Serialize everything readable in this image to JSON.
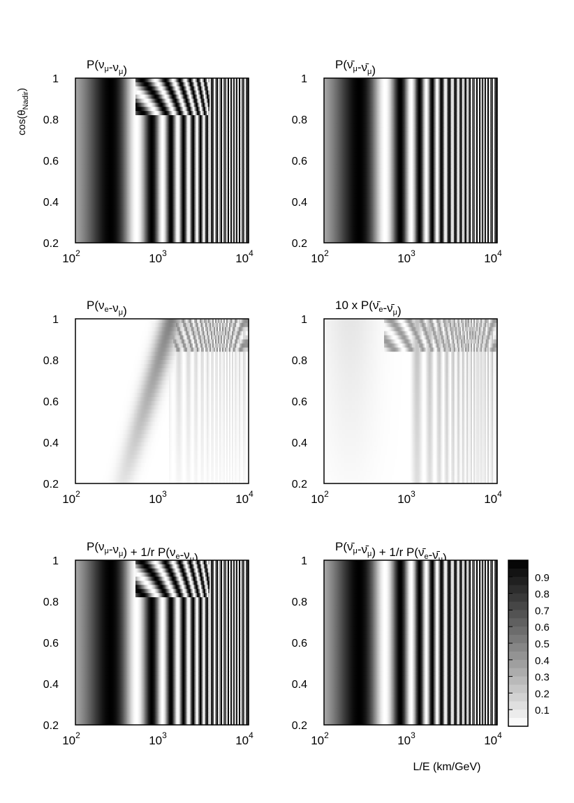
{
  "figure": {
    "ylabel": "cos(θ",
    "ylabel_sub": "Nadir",
    "ylabel_close": ")",
    "xlabel": "L/E (km/GeV)"
  },
  "chart_data": [
    {
      "type": "heatmap",
      "id": "p-numu-numu",
      "title_parts": [
        [
          "P(ν",
          ""
        ],
        [
          "μ",
          "sub"
        ],
        [
          "-ν",
          ""
        ],
        [
          "μ",
          "sub"
        ],
        [
          ")",
          ""
        ]
      ],
      "x_scale": "log",
      "xlim": [
        100,
        10000
      ],
      "ylim": [
        0.2,
        1.0
      ],
      "x_ticks": [
        [
          10,
          2
        ],
        [
          10,
          3
        ],
        [
          10,
          4
        ]
      ],
      "y_ticks": [
        "0.2",
        "0.4",
        "0.6",
        "0.8",
        "1"
      ],
      "value_range": [
        0,
        1
      ],
      "pattern": "survival-nu-matter"
    },
    {
      "type": "heatmap",
      "id": "p-numubar-numubar",
      "title_parts": [
        [
          "P(ν̄",
          ""
        ],
        [
          "μ",
          "sub"
        ],
        [
          "-ν̄",
          ""
        ],
        [
          "μ",
          "sub"
        ],
        [
          ")",
          ""
        ]
      ],
      "x_scale": "log",
      "xlim": [
        100,
        10000
      ],
      "ylim": [
        0.2,
        1.0
      ],
      "x_ticks": [
        [
          10,
          2
        ],
        [
          10,
          3
        ],
        [
          10,
          4
        ]
      ],
      "y_ticks": [
        "0.2",
        "0.4",
        "0.6",
        "0.8",
        "1"
      ],
      "value_range": [
        0,
        1
      ],
      "pattern": "survival-antinu"
    },
    {
      "type": "heatmap",
      "id": "p-nue-numu",
      "title_parts": [
        [
          "P(ν",
          ""
        ],
        [
          "e",
          "sub"
        ],
        [
          "-ν",
          ""
        ],
        [
          "μ",
          "sub"
        ],
        [
          ")",
          ""
        ]
      ],
      "x_scale": "log",
      "xlim": [
        100,
        10000
      ],
      "ylim": [
        0.2,
        1.0
      ],
      "x_ticks": [
        [
          10,
          2
        ],
        [
          10,
          3
        ],
        [
          10,
          4
        ]
      ],
      "y_ticks": [
        "0.2",
        "0.4",
        "0.6",
        "0.8",
        "1"
      ],
      "value_range": [
        0,
        1
      ],
      "pattern": "appearance-nu"
    },
    {
      "type": "heatmap",
      "id": "p-nuebar-numubar-x10",
      "title_parts": [
        [
          "10 x P(ν̄",
          ""
        ],
        [
          "e",
          "sub"
        ],
        [
          "-ν̄",
          ""
        ],
        [
          "μ",
          "sub"
        ],
        [
          ")",
          ""
        ]
      ],
      "x_scale": "log",
      "xlim": [
        100,
        10000
      ],
      "ylim": [
        0.2,
        1.0
      ],
      "x_ticks": [
        [
          10,
          2
        ],
        [
          10,
          3
        ],
        [
          10,
          4
        ]
      ],
      "y_ticks": [
        "0.2",
        "0.4",
        "0.6",
        "0.8",
        "1"
      ],
      "value_range": [
        0,
        1
      ],
      "pattern": "appearance-antinu"
    },
    {
      "type": "heatmap",
      "id": "p-numu-combined",
      "title_parts": [
        [
          "P(ν",
          ""
        ],
        [
          "μ",
          "sub"
        ],
        [
          "-ν",
          ""
        ],
        [
          "μ",
          "sub"
        ],
        [
          ") + 1/r P(ν",
          ""
        ],
        [
          "e",
          "sub"
        ],
        [
          "-ν",
          ""
        ],
        [
          "μ",
          "sub"
        ],
        [
          ")",
          ""
        ]
      ],
      "x_scale": "log",
      "xlim": [
        100,
        10000
      ],
      "ylim": [
        0.2,
        1.0
      ],
      "x_ticks": [
        [
          10,
          2
        ],
        [
          10,
          3
        ],
        [
          10,
          4
        ]
      ],
      "y_ticks": [
        "0.2",
        "0.4",
        "0.6",
        "0.8",
        "1"
      ],
      "value_range": [
        0,
        1
      ],
      "pattern": "survival-nu-matter"
    },
    {
      "type": "heatmap",
      "id": "p-numubar-combined",
      "title_parts": [
        [
          "P(ν̄",
          ""
        ],
        [
          "μ",
          "sub"
        ],
        [
          "-ν̄",
          ""
        ],
        [
          "μ",
          "sub"
        ],
        [
          ") + 1/r P(ν̄",
          ""
        ],
        [
          "e",
          "sub"
        ],
        [
          "-ν̄",
          ""
        ],
        [
          "μ",
          "sub"
        ],
        [
          ")",
          ""
        ]
      ],
      "x_scale": "log",
      "xlim": [
        100,
        10000
      ],
      "ylim": [
        0.2,
        1.0
      ],
      "x_ticks": [
        [
          10,
          2
        ],
        [
          10,
          3
        ],
        [
          10,
          4
        ]
      ],
      "y_ticks": [
        "0.2",
        "0.4",
        "0.6",
        "0.8",
        "1"
      ],
      "value_range": [
        0,
        1
      ],
      "pattern": "survival-antinu"
    }
  ],
  "colorbar": {
    "scale": "grayscale, 0 = white, 1 = black",
    "range": [
      0,
      1
    ],
    "labels": [
      "0.9",
      "0.8",
      "0.7",
      "0.6",
      "0.5",
      "0.4",
      "0.3",
      "0.2",
      "0.1"
    ]
  }
}
